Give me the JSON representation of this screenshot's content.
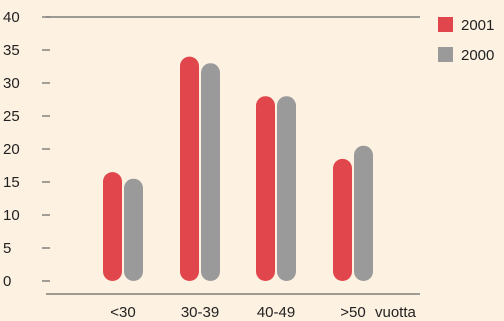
{
  "chart_data": {
    "type": "bar",
    "categories": [
      "<30",
      "30-39",
      "40-49",
      ">50"
    ],
    "series": [
      {
        "name": "2001",
        "color": "#e0464b",
        "values": [
          16.5,
          34,
          28,
          18.5
        ]
      },
      {
        "name": "2000",
        "color": "#9a9a9a",
        "values": [
          15.5,
          33,
          28,
          20.5
        ]
      }
    ],
    "xlabel": "vuotta",
    "ylabel": "",
    "ylim": [
      0,
      40
    ],
    "yticks": [
      0,
      5,
      10,
      15,
      20,
      25,
      30,
      35,
      40
    ],
    "grid": false,
    "legend_position": "top-right",
    "background": "#fdf1e1",
    "axis_color": "#666666"
  }
}
